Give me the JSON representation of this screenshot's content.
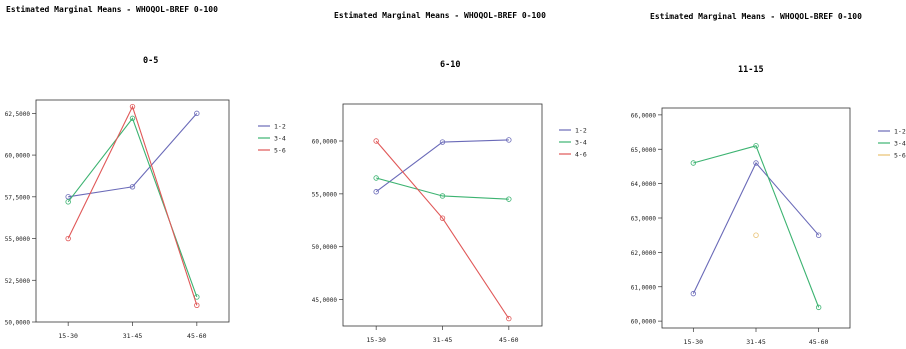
{
  "chart_data": [
    {
      "type": "line",
      "title": "Estimated Marginal Means - WHOQOL-BREF 0-100",
      "subtitle": "0-5",
      "categories": [
        "15-30",
        "31-45",
        "45-60"
      ],
      "ylim": [
        50,
        63.3
      ],
      "yticks": [
        50,
        52.5,
        55,
        57.5,
        60,
        62.5
      ],
      "ytick_labels": [
        "50,0000",
        "52,5000",
        "55,0000",
        "57,5000",
        "60,0000",
        "62,5000"
      ],
      "series": [
        {
          "name": "1-2",
          "color": "#6a6ab8",
          "values": [
            57.5,
            58.1,
            62.5
          ]
        },
        {
          "name": "3-4",
          "color": "#3cb371",
          "values": [
            57.2,
            62.2,
            51.5
          ]
        },
        {
          "name": "5-6",
          "color": "#e05858",
          "values": [
            55.0,
            62.9,
            51.0
          ]
        }
      ]
    },
    {
      "type": "line",
      "title": "Estimated Marginal Means - WHOQOL-BREF 0-100",
      "subtitle": "6-10",
      "categories": [
        "15-30",
        "31-45",
        "45-60"
      ],
      "ylim": [
        42.5,
        63.5
      ],
      "yticks": [
        45,
        50,
        55,
        60
      ],
      "ytick_labels": [
        "45,0000",
        "50,0000",
        "55,0000",
        "60,0000"
      ],
      "series": [
        {
          "name": "1-2",
          "color": "#6a6ab8",
          "values": [
            55.2,
            59.9,
            60.1
          ]
        },
        {
          "name": "3-4",
          "color": "#3cb371",
          "values": [
            56.5,
            54.8,
            54.5
          ]
        },
        {
          "name": "4-6",
          "color": "#e05858",
          "values": [
            60.0,
            52.7,
            43.2
          ]
        }
      ]
    },
    {
      "type": "line",
      "title": "Estimated Marginal Means - WHOQOL-BREF 0-100",
      "subtitle": "11-15",
      "categories": [
        "15-30",
        "31-45",
        "45-60"
      ],
      "ylim": [
        59.8,
        66.2
      ],
      "yticks": [
        60,
        61,
        62,
        63,
        64,
        65,
        66
      ],
      "ytick_labels": [
        "60,0000",
        "61,0000",
        "62,0000",
        "63,0000",
        "64,0000",
        "65,0000",
        "66,0000"
      ],
      "series": [
        {
          "name": "1-2",
          "color": "#6a6ab8",
          "values": [
            60.8,
            64.6,
            62.5
          ]
        },
        {
          "name": "3-4",
          "color": "#3cb371",
          "values": [
            64.6,
            65.1,
            60.4
          ]
        },
        {
          "name": "5-6",
          "color": "#e8c070",
          "values": [
            null,
            62.5,
            null
          ]
        }
      ]
    }
  ]
}
